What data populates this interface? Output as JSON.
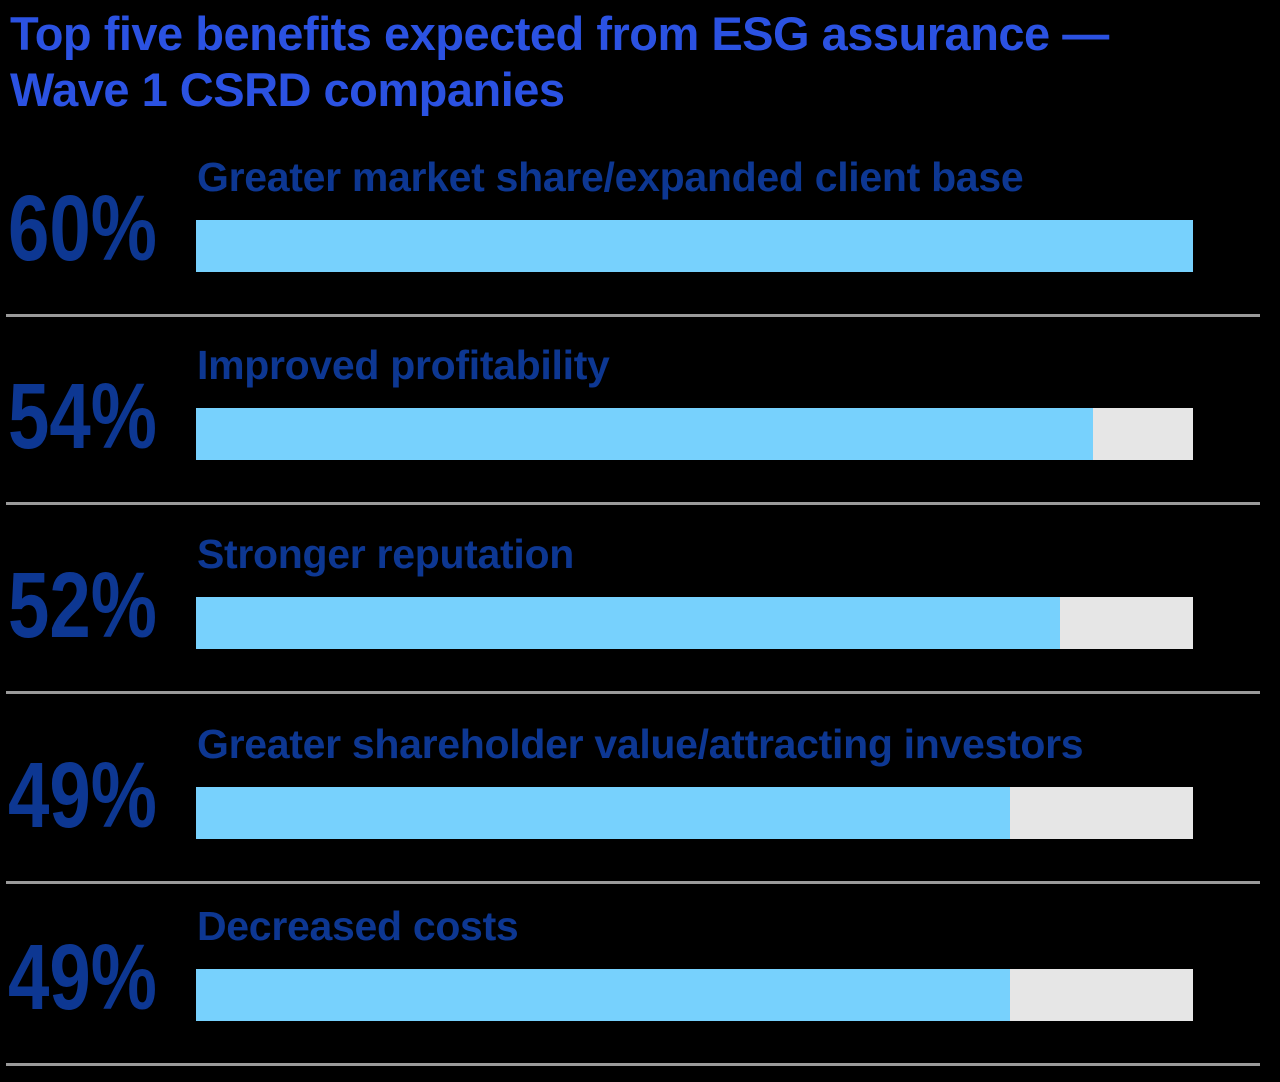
{
  "title": {
    "line1": "Top five benefits expected from ESG assurance —",
    "line2": "Wave 1 CSRD companies"
  },
  "colors": {
    "title_blue": "#2B52E2",
    "navy": "#0D3792",
    "bar_fill": "#77D1FD",
    "bar_track": "#E6E6E6",
    "divider": "#9A9A9A",
    "background": "#000000"
  },
  "chart_data": {
    "type": "bar",
    "orientation": "horizontal",
    "title": "Top five benefits expected from ESG assurance — Wave 1 CSRD companies",
    "categories": [
      "Greater market share/expanded client base",
      "Improved profitability",
      "Stronger reputation",
      "Greater shareholder value/attracting investors",
      "Decreased costs"
    ],
    "values": [
      60,
      54,
      52,
      49,
      49
    ],
    "value_labels": [
      "60%",
      "54%",
      "52%",
      "49%",
      "49%"
    ],
    "unit": "%",
    "axis_max": 60,
    "grid": false,
    "legend": false
  }
}
